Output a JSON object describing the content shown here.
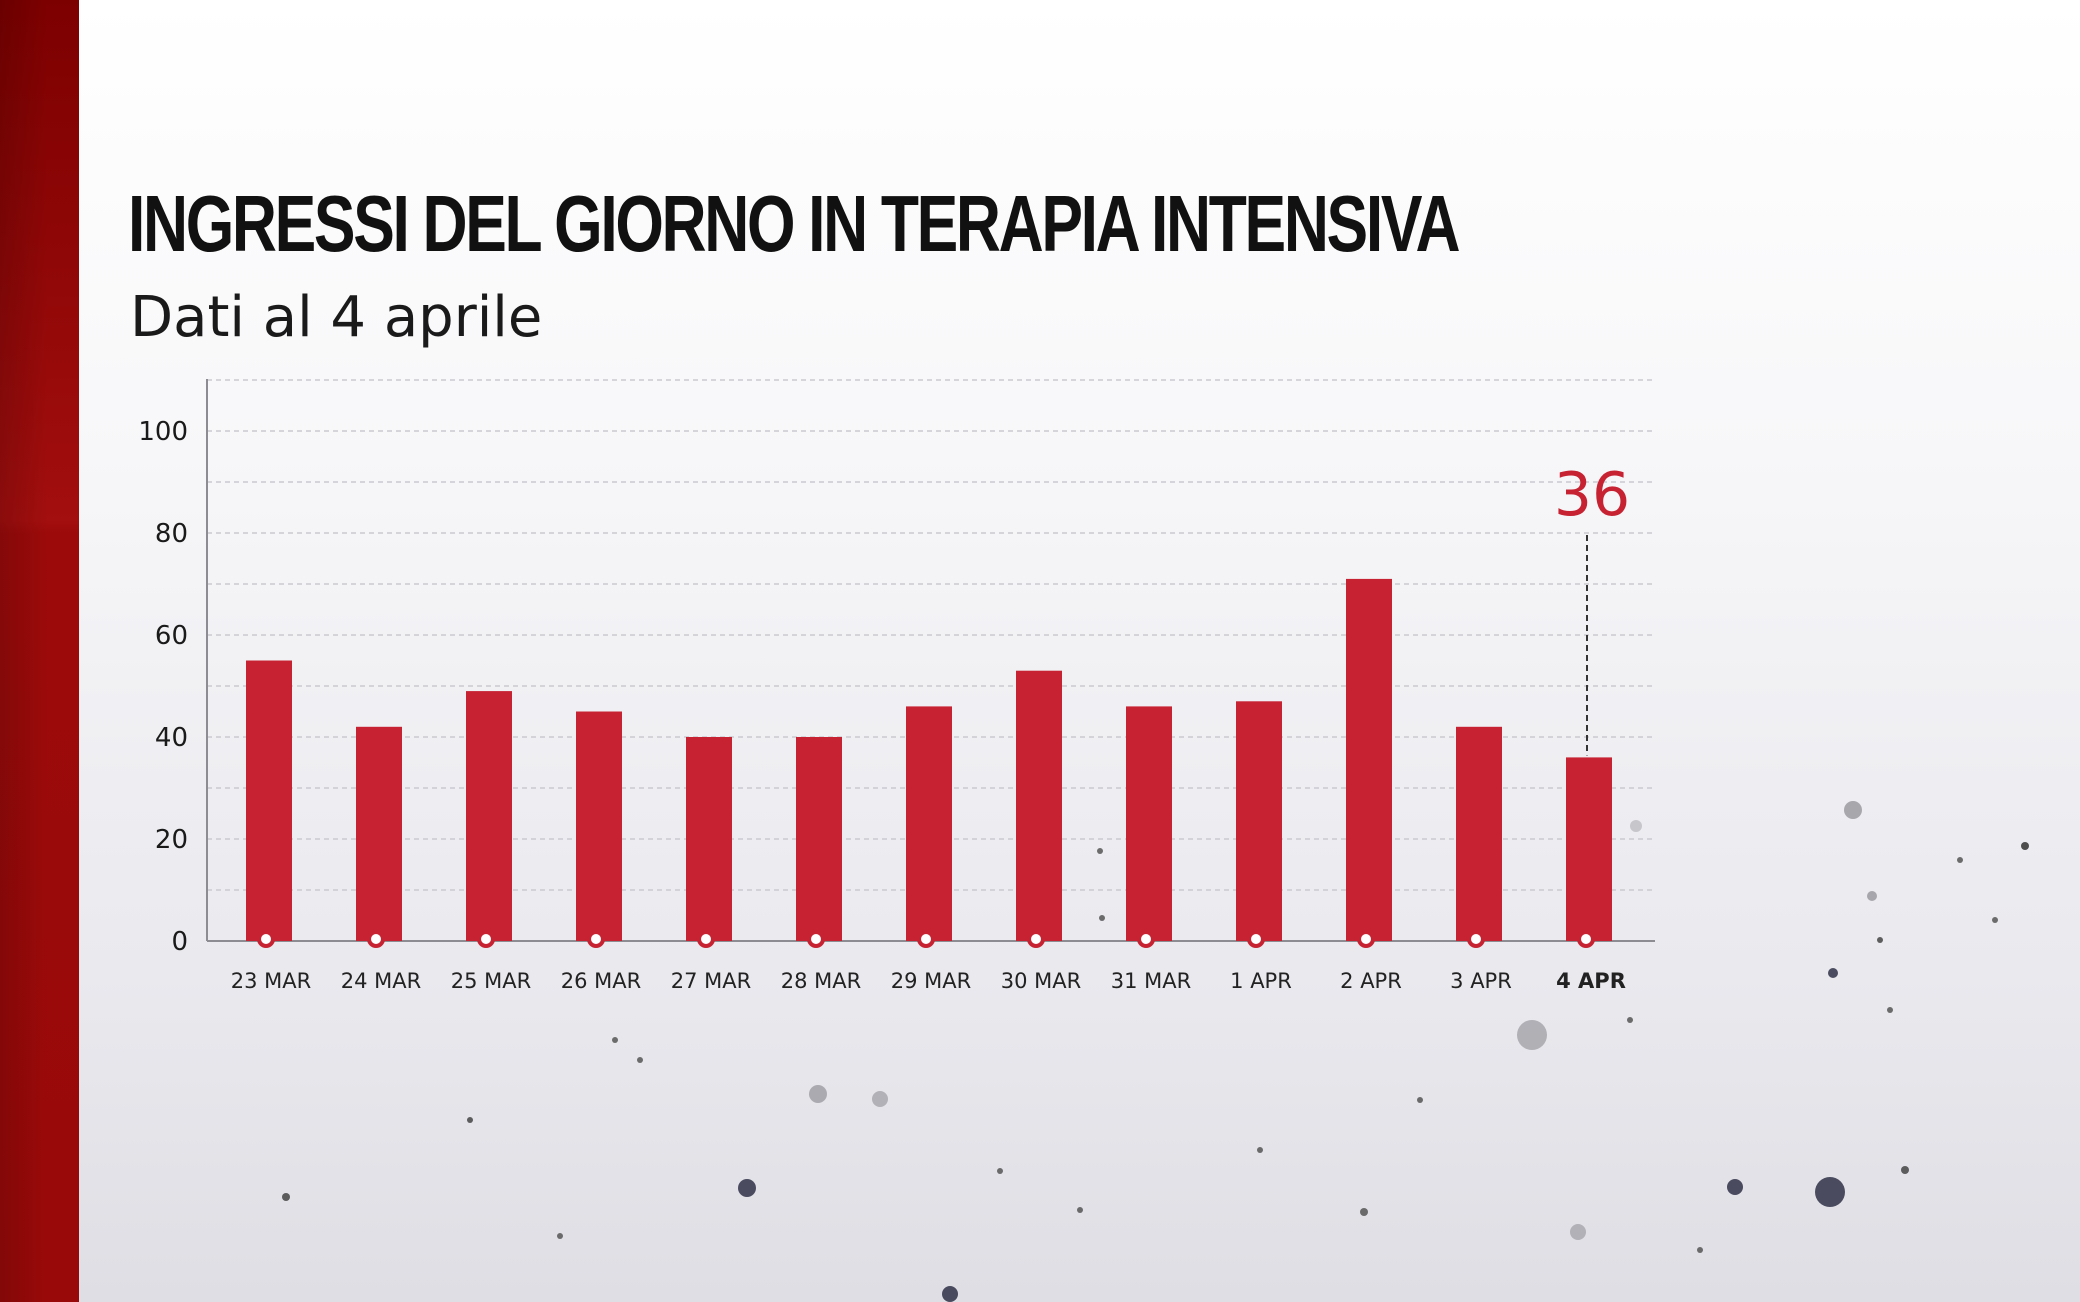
{
  "title": "INGRESSI DEL GIORNO IN TERAPIA INTENSIVA",
  "subtitle": "Dati al 4 aprile",
  "colors": {
    "bar": "#c62232",
    "highlight_label": "#c62232",
    "side_bar": "#9a0909"
  },
  "chart_data": {
    "type": "bar",
    "categories": [
      "23 MAR",
      "24 MAR",
      "25 MAR",
      "26 MAR",
      "27 MAR",
      "28 MAR",
      "29 MAR",
      "30 MAR",
      "31 MAR",
      "1 APR",
      "2 APR",
      "3 APR",
      "4 APR"
    ],
    "values": [
      55,
      42,
      49,
      45,
      40,
      40,
      46,
      53,
      46,
      47,
      71,
      42,
      36
    ],
    "highlight_category": "4 APR",
    "highlight_label": "36",
    "yticks": [
      0,
      20,
      40,
      60,
      80,
      100
    ],
    "ylim": [
      0,
      110
    ],
    "grid": true,
    "title": "INGRESSI DEL GIORNO IN TERAPIA INTENSIVA",
    "xlabel": "",
    "ylabel": ""
  }
}
